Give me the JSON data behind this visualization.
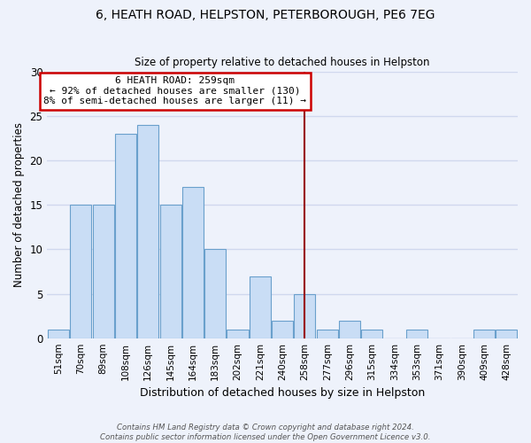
{
  "title": "6, HEATH ROAD, HELPSTON, PETERBOROUGH, PE6 7EG",
  "subtitle": "Size of property relative to detached houses in Helpston",
  "xlabel": "Distribution of detached houses by size in Helpston",
  "ylabel": "Number of detached properties",
  "bar_color": "#c9ddf5",
  "bar_edge_color": "#6aa0cc",
  "categories": [
    "51sqm",
    "70sqm",
    "89sqm",
    "108sqm",
    "126sqm",
    "145sqm",
    "164sqm",
    "183sqm",
    "202sqm",
    "221sqm",
    "240sqm",
    "258sqm",
    "277sqm",
    "296sqm",
    "315sqm",
    "334sqm",
    "353sqm",
    "371sqm",
    "390sqm",
    "409sqm",
    "428sqm"
  ],
  "values": [
    1,
    15,
    15,
    23,
    24,
    15,
    17,
    10,
    1,
    7,
    2,
    5,
    1,
    2,
    1,
    0,
    1,
    0,
    0,
    1,
    1
  ],
  "vline_index": 11,
  "vline_color": "#990000",
  "annotation_title": "6 HEATH ROAD: 259sqm",
  "annotation_line1": "← 92% of detached houses are smaller (130)",
  "annotation_line2": "8% of semi-detached houses are larger (11) →",
  "annotation_box_color": "#ffffff",
  "annotation_border_color": "#cc0000",
  "ylim": [
    0,
    30
  ],
  "yticks": [
    0,
    5,
    10,
    15,
    20,
    25,
    30
  ],
  "footer1": "Contains HM Land Registry data © Crown copyright and database right 2024.",
  "footer2": "Contains public sector information licensed under the Open Government Licence v3.0.",
  "background_color": "#eef2fb",
  "grid_color": "#d0d8ee"
}
